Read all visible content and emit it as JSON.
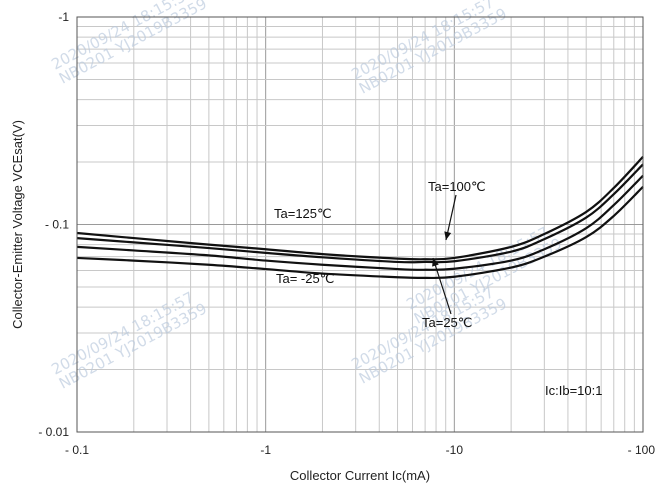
{
  "chart_data": {
    "type": "line",
    "xlabel": "Collector Current   Ic(mA)",
    "ylabel": "Collector-Emitter Voltage   VCEsat(V)",
    "x_scale": "log",
    "y_scale": "log",
    "xlim": [
      0.1,
      100
    ],
    "ylim": [
      0.01,
      1
    ],
    "x_ticks": [
      {
        "value": 0.1,
        "label": "- 0.1"
      },
      {
        "value": 1,
        "label": "-1"
      },
      {
        "value": 10,
        "label": "-10"
      },
      {
        "value": 100,
        "label": "- 100"
      }
    ],
    "y_ticks": [
      {
        "value": 1,
        "label": "-1"
      },
      {
        "value": 0.1,
        "label": "- 0.1"
      },
      {
        "value": 0.01,
        "label": "- 0.01"
      }
    ],
    "grid": true,
    "series": [
      {
        "name": "Ta=125℃",
        "points": [
          [
            0.1,
            0.091
          ],
          [
            0.2,
            0.086
          ],
          [
            0.5,
            0.08
          ],
          [
            1,
            0.076
          ],
          [
            2,
            0.072
          ],
          [
            5,
            0.0685
          ],
          [
            7,
            0.068
          ],
          [
            10,
            0.069
          ],
          [
            20,
            0.078
          ],
          [
            30,
            0.09
          ],
          [
            50,
            0.115
          ],
          [
            70,
            0.15
          ],
          [
            100,
            0.212
          ]
        ]
      },
      {
        "name": "Ta=100℃",
        "points": [
          [
            0.1,
            0.086
          ],
          [
            0.2,
            0.082
          ],
          [
            0.5,
            0.077
          ],
          [
            1,
            0.073
          ],
          [
            2,
            0.0695
          ],
          [
            5,
            0.066
          ],
          [
            7,
            0.066
          ],
          [
            10,
            0.0665
          ],
          [
            20,
            0.074
          ],
          [
            30,
            0.085
          ],
          [
            50,
            0.108
          ],
          [
            70,
            0.14
          ],
          [
            100,
            0.195
          ]
        ]
      },
      {
        "name": "Ta=25℃",
        "points": [
          [
            0.1,
            0.078
          ],
          [
            0.2,
            0.075
          ],
          [
            0.5,
            0.071
          ],
          [
            1,
            0.067
          ],
          [
            2,
            0.064
          ],
          [
            5,
            0.061
          ],
          [
            7,
            0.0605
          ],
          [
            10,
            0.0612
          ],
          [
            20,
            0.067
          ],
          [
            30,
            0.076
          ],
          [
            50,
            0.096
          ],
          [
            70,
            0.124
          ],
          [
            100,
            0.172
          ]
        ]
      },
      {
        "name": "Ta= -25℃",
        "points": [
          [
            0.1,
            0.069
          ],
          [
            0.2,
            0.067
          ],
          [
            0.5,
            0.064
          ],
          [
            1,
            0.061
          ],
          [
            2,
            0.058
          ],
          [
            5,
            0.0557
          ],
          [
            7,
            0.0553
          ],
          [
            10,
            0.056
          ],
          [
            20,
            0.062
          ],
          [
            30,
            0.07
          ],
          [
            50,
            0.087
          ],
          [
            70,
            0.11
          ],
          [
            100,
            0.152
          ]
        ]
      }
    ],
    "annotations": [
      {
        "text": "Ta=100℃"
      },
      {
        "text": "Ta=125℃"
      },
      {
        "text": "Ta= -25℃"
      },
      {
        "text": "Ta=25℃"
      },
      {
        "text": "Ic:Ib=10:1"
      }
    ]
  },
  "watermarks": [
    "2020/09/24  18:15:57",
    "NB0201 YJ2019B3359"
  ],
  "line_color": "#111111",
  "grid_color": "#c8c8c8"
}
